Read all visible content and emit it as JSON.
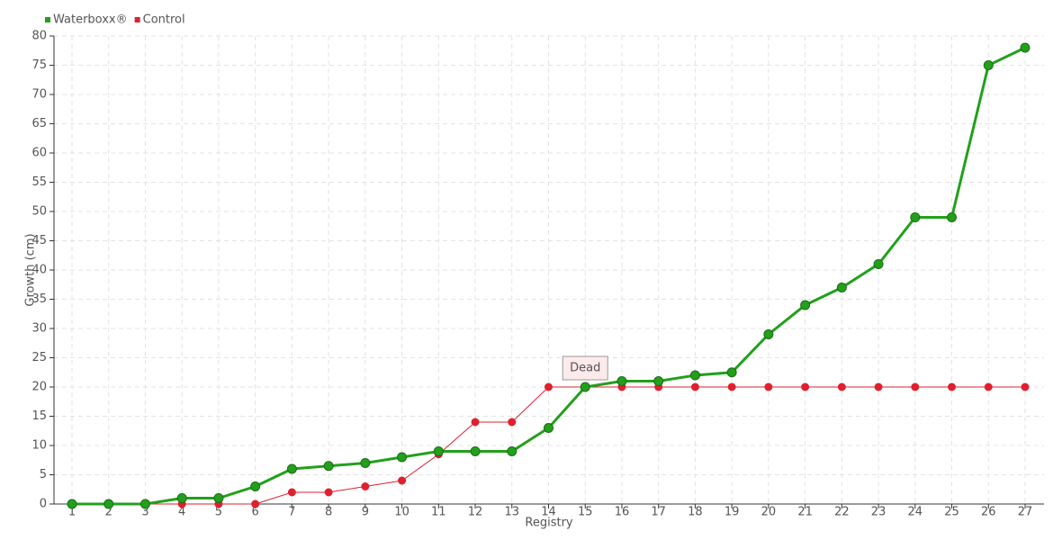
{
  "chart_data": {
    "type": "line",
    "x_label": "Registry",
    "y_label": "Growth (cm)",
    "categories": [
      "1",
      "2",
      "3",
      "4",
      "5",
      "6",
      "7",
      "8",
      "9",
      "10",
      "11",
      "12",
      "13",
      "14",
      "15",
      "16",
      "17",
      "18",
      "19",
      "20",
      "21",
      "22",
      "23",
      "24",
      "25",
      "26",
      "27"
    ],
    "series": [
      {
        "name": "Waterboxx®",
        "color": "#22a01c",
        "values": [
          0,
          0,
          0,
          1,
          1,
          3,
          6,
          6.5,
          7,
          8,
          9,
          9,
          9,
          13,
          20,
          21,
          21,
          22,
          22.5,
          29,
          34,
          37,
          41,
          49,
          49,
          75,
          78
        ]
      },
      {
        "name": "Control",
        "color": "#e0202e",
        "values": [
          0,
          0,
          0,
          0,
          0,
          0,
          2,
          2,
          3,
          4,
          8.5,
          14,
          14,
          20,
          20,
          20,
          20,
          20,
          20,
          20,
          20,
          20,
          20,
          20,
          20,
          20,
          20
        ]
      }
    ],
    "ylim": [
      0,
      80
    ],
    "yticks": [
      0,
      5,
      10,
      15,
      20,
      25,
      30,
      35,
      40,
      45,
      50,
      55,
      60,
      65,
      70,
      75,
      80
    ],
    "grid": true,
    "legend": "top-left",
    "annotations": [
      {
        "text": "Dead",
        "x": "15",
        "series": "Control"
      }
    ]
  }
}
